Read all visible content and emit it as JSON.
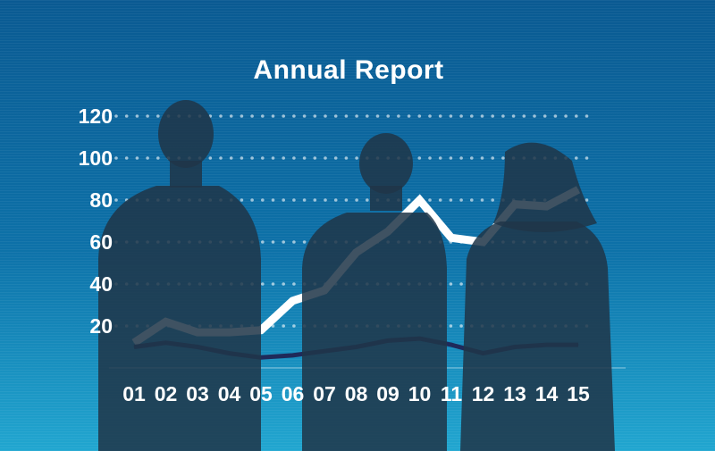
{
  "chart_data": {
    "type": "line",
    "title": "Annual Report",
    "xlabel": "",
    "ylabel": "",
    "categories": [
      "01",
      "02",
      "03",
      "04",
      "05",
      "06",
      "07",
      "08",
      "09",
      "10",
      "11",
      "12",
      "13",
      "14",
      "15"
    ],
    "series": [
      {
        "values": [
          12,
          22,
          17,
          17,
          18,
          32,
          37,
          55,
          65,
          80,
          62,
          60,
          78,
          77,
          85
        ]
      },
      {
        "values": [
          10,
          12,
          10,
          7,
          5,
          6,
          8,
          10,
          13,
          14,
          11,
          7,
          10,
          11,
          11
        ]
      }
    ],
    "yticks": [
      "120",
      "100",
      "80",
      "60",
      "40",
      "20"
    ],
    "ylim": [
      0,
      120
    ],
    "grid": true,
    "legend": false
  },
  "colors": {
    "background_top": "#0a5a92",
    "background_bottom": "#21a6d0",
    "series_light": "#ffffff",
    "series_dark": "#1f2a5a",
    "silhouette": "#203548"
  }
}
